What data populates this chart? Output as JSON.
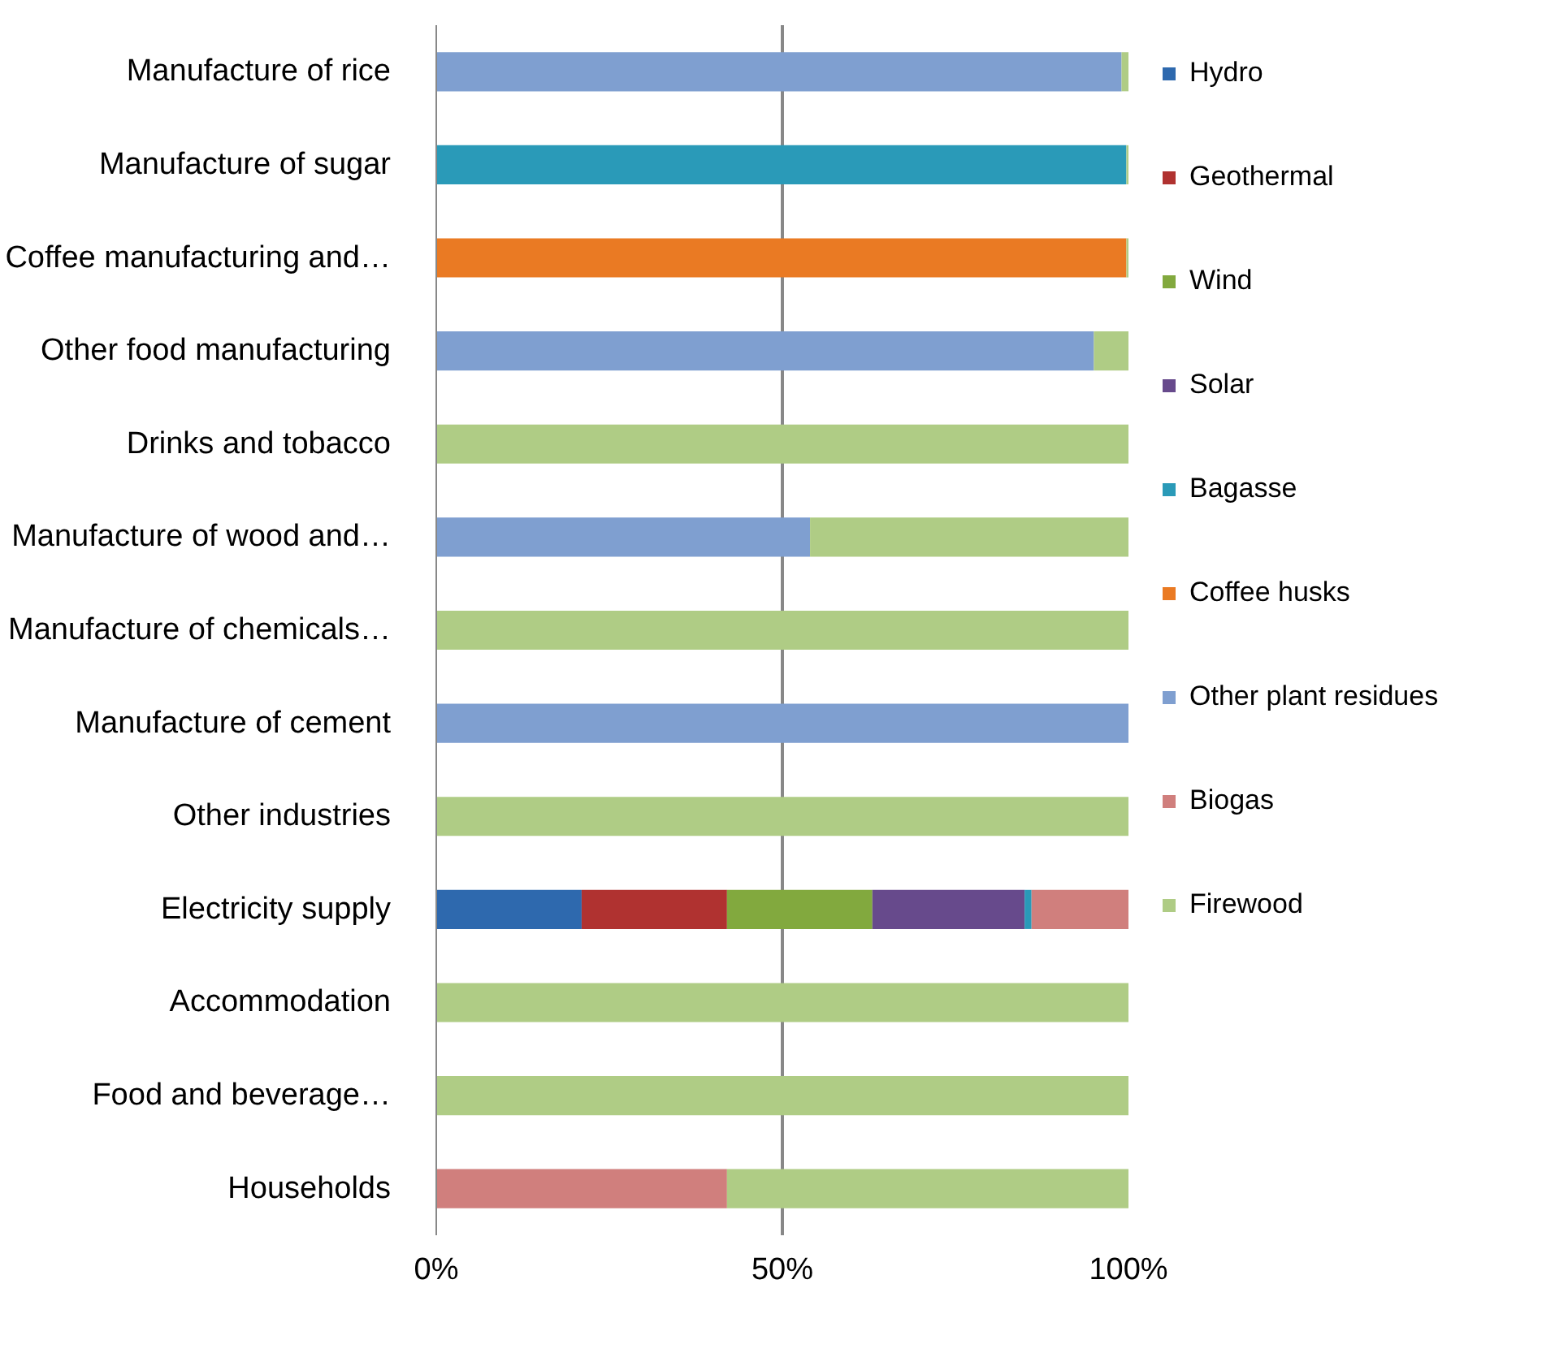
{
  "chart_data": {
    "type": "bar",
    "orientation": "horizontal",
    "stacked": true,
    "categories": [
      "Manufacture of rice",
      "Manufacture of sugar",
      "Coffee manufacturing and…",
      "Other food manufacturing",
      "Drinks and tobacco",
      "Manufacture of wood and…",
      "Manufacture of chemicals…",
      "Manufacture of cement",
      "Other industries",
      "Electricity supply",
      "Accommodation",
      "Food and beverage…",
      "Households"
    ],
    "series": [
      {
        "name": "Hydro",
        "color": "#2e69ae",
        "values": [
          null,
          null,
          null,
          null,
          null,
          null,
          null,
          null,
          null,
          21,
          null,
          null,
          null
        ]
      },
      {
        "name": "Geothermal",
        "color": "#b03230",
        "values": [
          null,
          null,
          null,
          null,
          null,
          null,
          null,
          null,
          null,
          21,
          null,
          null,
          null
        ]
      },
      {
        "name": "Wind",
        "color": "#82a93e",
        "values": [
          null,
          null,
          null,
          null,
          null,
          null,
          null,
          null,
          null,
          21,
          null,
          null,
          null
        ]
      },
      {
        "name": "Solar",
        "color": "#674a8c",
        "values": [
          null,
          null,
          null,
          null,
          null,
          null,
          null,
          null,
          null,
          22,
          null,
          null,
          null
        ]
      },
      {
        "name": "Bagasse",
        "color": "#2a9ab8",
        "values": [
          null,
          99.7,
          null,
          null,
          null,
          null,
          null,
          null,
          null,
          1,
          null,
          null,
          null
        ]
      },
      {
        "name": "Coffee husks",
        "color": "#ea7a23",
        "values": [
          null,
          null,
          99.7,
          null,
          null,
          null,
          null,
          null,
          null,
          null,
          null,
          null,
          null
        ]
      },
      {
        "name": "Other plant residues",
        "color": "#7f9fd0",
        "values": [
          99,
          null,
          null,
          95,
          null,
          54,
          null,
          100,
          null,
          null,
          null,
          null,
          null
        ]
      },
      {
        "name": "Biogas",
        "color": "#d07f7d",
        "values": [
          null,
          null,
          null,
          null,
          null,
          null,
          null,
          null,
          null,
          14,
          null,
          null,
          42
        ]
      },
      {
        "name": "Firewood",
        "color": "#afcc85",
        "values": [
          1,
          0.3,
          0.3,
          5,
          100,
          46,
          100,
          null,
          100,
          null,
          100,
          100,
          58
        ]
      }
    ],
    "xlim": [
      0,
      100
    ],
    "xticks": [
      {
        "value": 0,
        "label": "0%"
      },
      {
        "value": 50,
        "label": "50%"
      },
      {
        "value": 100,
        "label": "100%"
      }
    ],
    "grid": "x",
    "legend": "right"
  }
}
